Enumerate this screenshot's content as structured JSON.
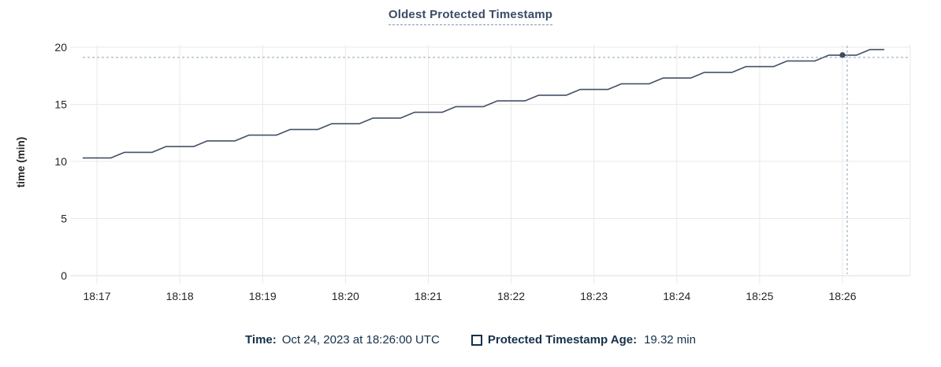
{
  "chart": {
    "title": "Oldest Protected Timestamp"
  },
  "legend": {
    "time_label": "Time:",
    "time_value": "Oct 24, 2023 at 18:26:00 UTC",
    "series_label": "Protected Timestamp Age:",
    "series_value": "19.32 min"
  },
  "colors": {
    "line": "#455068",
    "marker": "#3f4a62",
    "title_text": "#3b4a66",
    "legend_text": "#16304a",
    "grid": "#e9e9e9",
    "axis_line": "#dedede",
    "axis_text": "#242526",
    "crosshair": "#a3b7c4",
    "background": "#ffffff"
  },
  "chart_data": {
    "type": "line",
    "title": "Oldest Protected Timestamp",
    "xlabel": "",
    "ylabel": "time (min)",
    "ylim": [
      0,
      20
    ],
    "y_ticks": [
      0,
      5,
      10,
      15,
      20
    ],
    "x_ticks": [
      "18:17",
      "18:18",
      "18:19",
      "18:20",
      "18:21",
      "18:22",
      "18:23",
      "18:24",
      "18:25",
      "18:26"
    ],
    "grid": true,
    "legend_position": "bottom",
    "hover": {
      "time": "18:26:00",
      "value": 19.32,
      "time_text": "Oct 24, 2023 at 18:26:00 UTC",
      "value_text": "19.32 min"
    },
    "series": [
      {
        "name": "Protected Timestamp Age",
        "unit": "min",
        "points": [
          [
            "18:16:50",
            10.3
          ],
          [
            "18:17:00",
            10.3
          ],
          [
            "18:17:10",
            10.3
          ],
          [
            "18:17:20",
            10.8
          ],
          [
            "18:17:30",
            10.8
          ],
          [
            "18:17:40",
            10.8
          ],
          [
            "18:17:50",
            11.3
          ],
          [
            "18:18:00",
            11.3
          ],
          [
            "18:18:10",
            11.3
          ],
          [
            "18:18:20",
            11.8
          ],
          [
            "18:18:30",
            11.8
          ],
          [
            "18:18:40",
            11.8
          ],
          [
            "18:18:50",
            12.3
          ],
          [
            "18:19:00",
            12.3
          ],
          [
            "18:19:10",
            12.3
          ],
          [
            "18:19:20",
            12.8
          ],
          [
            "18:19:30",
            12.8
          ],
          [
            "18:19:40",
            12.8
          ],
          [
            "18:19:50",
            13.3
          ],
          [
            "18:20:00",
            13.3
          ],
          [
            "18:20:10",
            13.3
          ],
          [
            "18:20:20",
            13.8
          ],
          [
            "18:20:30",
            13.8
          ],
          [
            "18:20:40",
            13.8
          ],
          [
            "18:20:50",
            14.3
          ],
          [
            "18:21:00",
            14.3
          ],
          [
            "18:21:10",
            14.3
          ],
          [
            "18:21:20",
            14.8
          ],
          [
            "18:21:30",
            14.8
          ],
          [
            "18:21:40",
            14.8
          ],
          [
            "18:21:50",
            15.3
          ],
          [
            "18:22:00",
            15.3
          ],
          [
            "18:22:10",
            15.3
          ],
          [
            "18:22:20",
            15.8
          ],
          [
            "18:22:30",
            15.8
          ],
          [
            "18:22:40",
            15.8
          ],
          [
            "18:22:50",
            16.3
          ],
          [
            "18:23:00",
            16.3
          ],
          [
            "18:23:10",
            16.3
          ],
          [
            "18:23:20",
            16.8
          ],
          [
            "18:23:30",
            16.8
          ],
          [
            "18:23:40",
            16.8
          ],
          [
            "18:23:50",
            17.3
          ],
          [
            "18:24:00",
            17.3
          ],
          [
            "18:24:10",
            17.3
          ],
          [
            "18:24:20",
            17.8
          ],
          [
            "18:24:30",
            17.8
          ],
          [
            "18:24:40",
            17.8
          ],
          [
            "18:24:50",
            18.3
          ],
          [
            "18:25:00",
            18.3
          ],
          [
            "18:25:10",
            18.3
          ],
          [
            "18:25:20",
            18.8
          ],
          [
            "18:25:30",
            18.8
          ],
          [
            "18:25:40",
            18.8
          ],
          [
            "18:25:50",
            19.3
          ],
          [
            "18:26:00",
            19.3
          ],
          [
            "18:26:10",
            19.3
          ],
          [
            "18:26:20",
            19.8
          ],
          [
            "18:26:30",
            19.8
          ]
        ]
      }
    ]
  }
}
